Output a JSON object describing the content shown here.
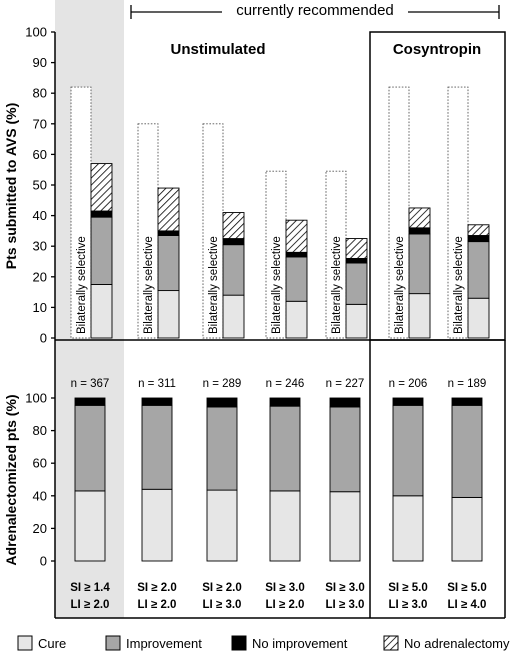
{
  "chart_data": [
    {
      "type": "bar",
      "panel": "top",
      "ylabel": "Pts submitted to AVS (%)",
      "ylim": [
        0,
        100
      ],
      "yticks": [
        0,
        10,
        20,
        30,
        40,
        50,
        60,
        70,
        80,
        90,
        100
      ],
      "group_titles": [
        "Unstimulated",
        "Cosyntropin"
      ],
      "recommended_label": "currently recommended",
      "bilateral_label": "Bilaterally selective",
      "bilaterally_selective": [
        82,
        70,
        70,
        54.5,
        54.5,
        82,
        82
      ],
      "series": [
        {
          "name": "Cure",
          "color": "#e6e6e6",
          "values": [
            17.5,
            15.5,
            14,
            12,
            11,
            14.5,
            13
          ]
        },
        {
          "name": "Improvement",
          "color": "#a6a6a6",
          "values": [
            22,
            18,
            16.5,
            14.5,
            13.5,
            19.5,
            18.5
          ]
        },
        {
          "name": "No improvement",
          "color": "#000000",
          "values": [
            2,
            1.5,
            2,
            1.5,
            1.5,
            2,
            2
          ]
        },
        {
          "name": "No adrenalectomy",
          "color": "hatch",
          "values": [
            15.5,
            14,
            8.5,
            10.5,
            6.5,
            6.5,
            3.5
          ]
        }
      ]
    },
    {
      "type": "bar",
      "panel": "bottom",
      "ylabel": "Adrenalectomized pts (%)",
      "ylim": [
        0,
        100
      ],
      "yticks": [
        0,
        20,
        40,
        60,
        80,
        100
      ],
      "n_labels": [
        "n = 367",
        "n = 311",
        "n = 289",
        "n = 246",
        "n = 227",
        "n = 206",
        "n = 189"
      ],
      "series": [
        {
          "name": "Cure",
          "color": "#e6e6e6",
          "values": [
            43,
            44,
            43.5,
            43,
            42.5,
            40,
            39
          ]
        },
        {
          "name": "Improvement",
          "color": "#a6a6a6",
          "values": [
            52.5,
            51.5,
            51,
            52,
            52,
            55.5,
            56.5
          ]
        },
        {
          "name": "No improvement",
          "color": "#000000",
          "values": [
            4.5,
            4.5,
            5.5,
            5,
            5.5,
            4.5,
            4.5
          ]
        }
      ],
      "conditions": [
        {
          "si": "SI  ≥  1.4",
          "li": "LI  ≥  2.0"
        },
        {
          "si": "SI  ≥  2.0",
          "li": "LI  ≥  2.0"
        },
        {
          "si": "SI  ≥  2.0",
          "li": "LI  ≥  3.0"
        },
        {
          "si": "SI  ≥  3.0",
          "li": "LI  ≥  2.0"
        },
        {
          "si": "SI  ≥  3.0",
          "li": "LI  ≥  3.0"
        },
        {
          "si": "SI  ≥  5.0",
          "li": "LI  ≥  3.0"
        },
        {
          "si": "SI  ≥  5.0",
          "li": "LI  ≥  4.0"
        }
      ]
    }
  ],
  "legend": [
    {
      "label": "Cure",
      "color": "#e6e6e6"
    },
    {
      "label": "Improvement",
      "color": "#a6a6a6"
    },
    {
      "label": "No improvement",
      "color": "#000000"
    },
    {
      "label": "No adrenalectomy",
      "color": "hatch"
    }
  ]
}
